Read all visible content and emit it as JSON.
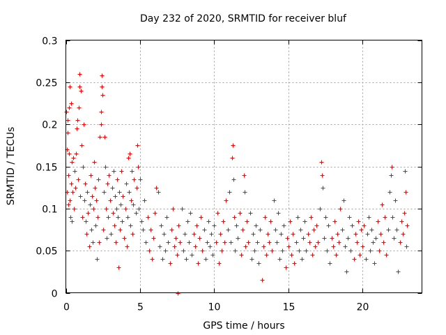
{
  "chart_data": {
    "type": "scatter",
    "title": "Day 232 of 2020, SRMTID for receiver bluf",
    "xlabel": "GPS time / hours",
    "ylabel": "SRMTID / TECUs",
    "xlim": [
      0,
      24
    ],
    "ylim": [
      0,
      0.3
    ],
    "xticks": [
      0,
      5,
      10,
      15,
      20
    ],
    "xtick_labels": [
      "0",
      "5",
      "10",
      "15",
      "20"
    ],
    "yticks": [
      0,
      0.05,
      0.1,
      0.15,
      0.2,
      0.25,
      0.3
    ],
    "ytick_labels": [
      "0",
      "0.05",
      "0.1",
      "0.15",
      "0.2",
      "0.25",
      "0.3"
    ],
    "grid": true,
    "marker": "plus",
    "color": "#ff0000",
    "series": [
      {
        "name": "SRMTID",
        "points": [
          [
            0.02,
            0.215
          ],
          [
            0.05,
            0.17
          ],
          [
            0.08,
            0.12
          ],
          [
            0.1,
            0.19
          ],
          [
            0.12,
            0.205
          ],
          [
            0.15,
            0.105
          ],
          [
            0.18,
            0.14
          ],
          [
            0.2,
            0.22
          ],
          [
            0.22,
            0.165
          ],
          [
            0.25,
            0.11
          ],
          [
            0.28,
            0.245
          ],
          [
            0.3,
            0.09
          ],
          [
            0.33,
            0.13
          ],
          [
            0.35,
            0.225
          ],
          [
            0.38,
            0.085
          ],
          [
            0.4,
            0.155
          ],
          [
            0.45,
            0.12
          ],
          [
            0.5,
            0.16
          ],
          [
            0.55,
            0.1
          ],
          [
            0.6,
            0.145
          ],
          [
            0.65,
            0.125
          ],
          [
            0.7,
            0.165
          ],
          [
            0.75,
            0.195
          ],
          [
            0.78,
            0.205
          ],
          [
            0.8,
            0.135
          ],
          [
            0.85,
            0.22
          ],
          [
            0.9,
            0.245
          ],
          [
            0.93,
            0.26
          ],
          [
            0.95,
            0.115
          ],
          [
            1.0,
            0.24
          ],
          [
            1.05,
            0.175
          ],
          [
            1.1,
            0.09
          ],
          [
            1.15,
            0.15
          ],
          [
            1.2,
            0.2
          ],
          [
            1.25,
            0.11
          ],
          [
            1.3,
            0.13
          ],
          [
            1.35,
            0.085
          ],
          [
            1.4,
            0.07
          ],
          [
            1.45,
            0.12
          ],
          [
            1.5,
            0.095
          ],
          [
            1.55,
            0.055
          ],
          [
            1.6,
            0.105
          ],
          [
            1.65,
            0.14
          ],
          [
            1.7,
            0.075
          ],
          [
            1.75,
            0.115
          ],
          [
            1.8,
            0.06
          ],
          [
            1.85,
            0.1
          ],
          [
            1.9,
            0.155
          ],
          [
            1.95,
            0.125
          ],
          [
            2.0,
            0.08
          ],
          [
            2.05,
            0.11
          ],
          [
            2.1,
            0.04
          ],
          [
            2.15,
            0.09
          ],
          [
            2.2,
            0.135
          ],
          [
            2.25,
            0.06
          ],
          [
            2.3,
            0.185
          ],
          [
            2.35,
            0.2
          ],
          [
            2.38,
            0.215
          ],
          [
            2.4,
            0.258
          ],
          [
            2.42,
            0.245
          ],
          [
            2.45,
            0.235
          ],
          [
            2.5,
            0.075
          ],
          [
            2.55,
            0.12
          ],
          [
            2.6,
            0.185
          ],
          [
            2.65,
            0.15
          ],
          [
            2.7,
            0.1
          ],
          [
            2.75,
            0.065
          ],
          [
            2.8,
            0.13
          ],
          [
            2.85,
            0.09
          ],
          [
            2.9,
            0.14
          ],
          [
            3.0,
            0.11
          ],
          [
            3.05,
            0.07
          ],
          [
            3.1,
            0.125
          ],
          [
            3.15,
            0.095
          ],
          [
            3.2,
            0.145
          ],
          [
            3.25,
            0.08
          ],
          [
            3.3,
            0.115
          ],
          [
            3.35,
            0.06
          ],
          [
            3.4,
            0.1
          ],
          [
            3.45,
            0.135
          ],
          [
            3.5,
            0.09
          ],
          [
            3.55,
            0.03
          ],
          [
            3.6,
            0.12
          ],
          [
            3.65,
            0.075
          ],
          [
            3.7,
            0.105
          ],
          [
            3.75,
            0.145
          ],
          [
            3.8,
            0.085
          ],
          [
            3.85,
            0.115
          ],
          [
            3.9,
            0.065
          ],
          [
            4.0,
            0.1
          ],
          [
            4.05,
            0.13
          ],
          [
            4.1,
            0.055
          ],
          [
            4.15,
            0.09
          ],
          [
            4.2,
            0.16
          ],
          [
            4.25,
            0.12
          ],
          [
            4.3,
            0.165
          ],
          [
            4.35,
            0.08
          ],
          [
            4.4,
            0.11
          ],
          [
            4.45,
            0.145
          ],
          [
            4.5,
            0.07
          ],
          [
            4.55,
            0.105
          ],
          [
            4.6,
            0.135
          ],
          [
            4.7,
            0.095
          ],
          [
            4.75,
            0.125
          ],
          [
            4.8,
            0.175
          ],
          [
            4.85,
            0.15
          ],
          [
            4.9,
            0.1
          ],
          [
            5.0,
            0.135
          ],
          [
            5.1,
            0.085
          ],
          [
            5.2,
            0.075
          ],
          [
            5.3,
            0.11
          ],
          [
            5.4,
            0.06
          ],
          [
            5.5,
            0.09
          ],
          [
            5.6,
            0.05
          ],
          [
            5.7,
            0.075
          ],
          [
            5.8,
            0.04
          ],
          [
            5.9,
            0.065
          ],
          [
            6.0,
            0.095
          ],
          [
            6.1,
            0.125
          ],
          [
            6.2,
            0.12
          ],
          [
            6.3,
            0.055
          ],
          [
            6.4,
            0.08
          ],
          [
            6.5,
            0.04
          ],
          [
            6.6,
            0.07
          ],
          [
            6.7,
            0.05
          ],
          [
            6.8,
            0.09
          ],
          [
            6.9,
            0.06
          ],
          [
            7.0,
            0.035
          ],
          [
            7.1,
            0.075
          ],
          [
            7.2,
            0.1
          ],
          [
            7.3,
            0.055
          ],
          [
            7.4,
            0.065
          ],
          [
            7.5,
            0.045
          ],
          [
            7.55,
            0.0
          ],
          [
            7.6,
            0.08
          ],
          [
            7.7,
            0.06
          ],
          [
            7.8,
            0.1
          ],
          [
            7.9,
            0.05
          ],
          [
            8.0,
            0.07
          ],
          [
            8.1,
            0.04
          ],
          [
            8.2,
            0.085
          ],
          [
            8.3,
            0.06
          ],
          [
            8.4,
            0.095
          ],
          [
            8.5,
            0.045
          ],
          [
            8.6,
            0.07
          ],
          [
            8.7,
            0.055
          ],
          [
            8.8,
            0.08
          ],
          [
            8.9,
            0.035
          ],
          [
            9.0,
            0.065
          ],
          [
            9.1,
            0.09
          ],
          [
            9.2,
            0.05
          ],
          [
            9.3,
            0.075
          ],
          [
            9.4,
            0.04
          ],
          [
            9.5,
            0.06
          ],
          [
            9.6,
            0.085
          ],
          [
            9.7,
            0.055
          ],
          [
            9.8,
            0.07
          ],
          [
            9.9,
            0.045
          ],
          [
            10.0,
            0.08
          ],
          [
            10.1,
            0.06
          ],
          [
            10.2,
            0.095
          ],
          [
            10.3,
            0.035
          ],
          [
            10.4,
            0.07
          ],
          [
            10.5,
            0.05
          ],
          [
            10.6,
            0.085
          ],
          [
            10.7,
            0.06
          ],
          [
            10.8,
            0.11
          ],
          [
            10.9,
            0.075
          ],
          [
            11.0,
            0.12
          ],
          [
            11.1,
            0.06
          ],
          [
            11.2,
            0.16
          ],
          [
            11.25,
            0.175
          ],
          [
            11.3,
            0.135
          ],
          [
            11.35,
            0.09
          ],
          [
            11.4,
            0.05
          ],
          [
            11.5,
            0.08
          ],
          [
            11.6,
            0.065
          ],
          [
            11.7,
            0.095
          ],
          [
            11.8,
            0.045
          ],
          [
            11.9,
            0.075
          ],
          [
            12.0,
            0.14
          ],
          [
            12.05,
            0.12
          ],
          [
            12.1,
            0.055
          ],
          [
            12.2,
            0.085
          ],
          [
            12.3,
            0.06
          ],
          [
            12.4,
            0.095
          ],
          [
            12.5,
            0.04
          ],
          [
            12.6,
            0.07
          ],
          [
            12.7,
            0.05
          ],
          [
            12.8,
            0.08
          ],
          [
            12.9,
            0.06
          ],
          [
            13.0,
            0.035
          ],
          [
            13.1,
            0.075
          ],
          [
            13.2,
            0.015
          ],
          [
            13.3,
            0.055
          ],
          [
            13.4,
            0.09
          ],
          [
            13.5,
            0.045
          ],
          [
            13.6,
            0.07
          ],
          [
            13.7,
            0.06
          ],
          [
            13.8,
            0.085
          ],
          [
            13.9,
            0.05
          ],
          [
            14.0,
            0.11
          ],
          [
            14.1,
            0.075
          ],
          [
            14.2,
            0.06
          ],
          [
            14.3,
            0.095
          ],
          [
            14.4,
            0.04
          ],
          [
            14.5,
            0.07
          ],
          [
            14.6,
            0.05
          ],
          [
            14.7,
            0.08
          ],
          [
            14.8,
            0.03
          ],
          [
            14.9,
            0.065
          ],
          [
            15.0,
            0.055
          ],
          [
            15.1,
            0.085
          ],
          [
            15.2,
            0.045
          ],
          [
            15.3,
            0.07
          ],
          [
            15.4,
            0.035
          ],
          [
            15.5,
            0.06
          ],
          [
            15.6,
            0.09
          ],
          [
            15.7,
            0.05
          ],
          [
            15.8,
            0.075
          ],
          [
            15.9,
            0.04
          ],
          [
            16.0,
            0.065
          ],
          [
            16.1,
            0.085
          ],
          [
            16.2,
            0.05
          ],
          [
            16.3,
            0.07
          ],
          [
            16.4,
            0.06
          ],
          [
            16.5,
            0.09
          ],
          [
            16.6,
            0.045
          ],
          [
            16.7,
            0.075
          ],
          [
            16.8,
            0.055
          ],
          [
            16.9,
            0.08
          ],
          [
            17.0,
            0.06
          ],
          [
            17.1,
            0.1
          ],
          [
            17.2,
            0.155
          ],
          [
            17.25,
            0.14
          ],
          [
            17.3,
            0.125
          ],
          [
            17.4,
            0.065
          ],
          [
            17.5,
            0.09
          ],
          [
            17.6,
            0.05
          ],
          [
            17.7,
            0.08
          ],
          [
            17.8,
            0.035
          ],
          [
            17.9,
            0.065
          ],
          [
            18.0,
            0.055
          ],
          [
            18.1,
            0.085
          ],
          [
            18.2,
            0.045
          ],
          [
            18.3,
            0.07
          ],
          [
            18.4,
            0.06
          ],
          [
            18.5,
            0.1
          ],
          [
            18.6,
            0.075
          ],
          [
            18.7,
            0.11
          ],
          [
            18.8,
            0.055
          ],
          [
            18.9,
            0.025
          ],
          [
            19.0,
            0.065
          ],
          [
            19.1,
            0.09
          ],
          [
            19.2,
            0.05
          ],
          [
            19.3,
            0.08
          ],
          [
            19.4,
            0.04
          ],
          [
            19.5,
            0.07
          ],
          [
            19.6,
            0.06
          ],
          [
            19.7,
            0.085
          ],
          [
            19.8,
            0.045
          ],
          [
            19.9,
            0.075
          ],
          [
            20.0,
            0.055
          ],
          [
            20.1,
            0.08
          ],
          [
            20.2,
            0.04
          ],
          [
            20.3,
            0.07
          ],
          [
            20.4,
            0.09
          ],
          [
            20.5,
            0.05
          ],
          [
            20.6,
            0.075
          ],
          [
            20.7,
            0.06
          ],
          [
            20.8,
            0.035
          ],
          [
            20.9,
            0.065
          ],
          [
            21.0,
            0.085
          ],
          [
            21.1,
            0.05
          ],
          [
            21.2,
            0.07
          ],
          [
            21.3,
            0.105
          ],
          [
            21.4,
            0.06
          ],
          [
            21.5,
            0.09
          ],
          [
            21.6,
            0.045
          ],
          [
            21.7,
            0.075
          ],
          [
            21.8,
            0.12
          ],
          [
            21.9,
            0.14
          ],
          [
            21.95,
            0.15
          ],
          [
            22.0,
            0.09
          ],
          [
            22.1,
            0.065
          ],
          [
            22.2,
            0.11
          ],
          [
            22.3,
            0.075
          ],
          [
            22.4,
            0.025
          ],
          [
            22.5,
            0.06
          ],
          [
            22.6,
            0.085
          ],
          [
            22.7,
            0.07
          ],
          [
            22.8,
            0.095
          ],
          [
            22.85,
            0.145
          ],
          [
            22.9,
            0.12
          ],
          [
            22.95,
            0.055
          ],
          [
            23.0,
            0.08
          ]
        ]
      }
    ]
  }
}
